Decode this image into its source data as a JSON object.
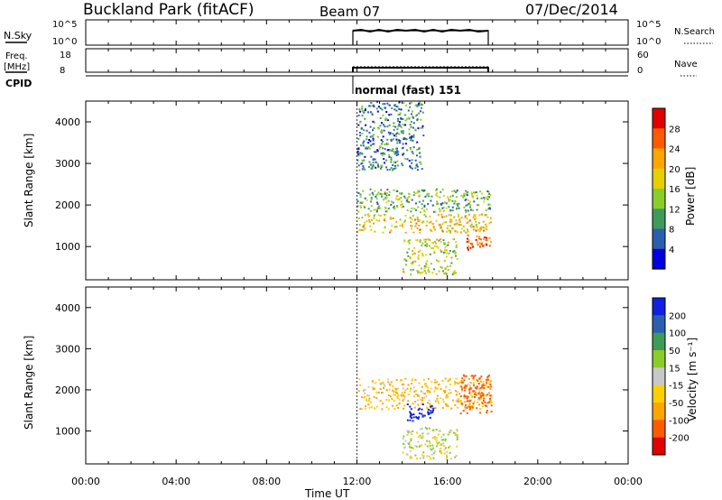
{
  "header": {
    "site": "Buckland Park (fitACF)",
    "beam": "Beam 07",
    "date": "07/Dec/2014"
  },
  "panels": {
    "nsky": {
      "left_label": "N.Sky",
      "right_label": "N.Search",
      "left_ticks": [
        "10^5",
        "10^0"
      ],
      "right_ticks": [
        "10^5",
        "10^0"
      ]
    },
    "freq": {
      "left_label_1": "Freq.",
      "left_label_2": "[MHz]",
      "right_label": "Nave",
      "left_ticks": [
        "18",
        "8"
      ],
      "right_ticks": [
        "60",
        "0"
      ]
    },
    "cpid": {
      "label": "CPID",
      "mode_text": "normal (fast) 151"
    }
  },
  "power_panel": {
    "ylabel": "Slant Range [km]",
    "colorbar_label": "Power [dB]",
    "colorbar_ticks": [
      "28",
      "24",
      "20",
      "16",
      "12",
      "8",
      "4"
    ],
    "colors": [
      "#e00000",
      "#ff5a00",
      "#ffa500",
      "#e6d000",
      "#8ccc2a",
      "#3f9b5a",
      "#2a5fb0",
      "#0000e0"
    ]
  },
  "velocity_panel": {
    "ylabel": "Slant Range [km]",
    "colorbar_label": "Velocity [m s⁻¹]",
    "colorbar_ticks": [
      "200",
      "100",
      "50",
      "15",
      "-15",
      "-50",
      "-100",
      "-200"
    ],
    "colors": [
      "#1020e0",
      "#2a5fb0",
      "#3f9b5a",
      "#8ccc2a",
      "#c8c8c8",
      "#ffd000",
      "#ffa500",
      "#ff5a00",
      "#e00000"
    ]
  },
  "x_axis": {
    "label": "Time UT",
    "ticks": [
      "00:00",
      "04:00",
      "08:00",
      "12:00",
      "16:00",
      "20:00",
      "00:00"
    ]
  },
  "chart_data": [
    {
      "type": "heatmap",
      "quantity": "Power",
      "unit": "dB",
      "xlabel": "Time UT",
      "ylabel": "Slant Range [km]",
      "xlim": [
        0,
        24
      ],
      "ylim": [
        200,
        4500
      ],
      "yticks": [
        1000,
        2000,
        3000,
        4000
      ],
      "data_window_hours": [
        12,
        18
      ],
      "scale_range": [
        0,
        30
      ],
      "echo_regions": [
        {
          "t_start": 12.0,
          "t_end": 18.0,
          "r_min": 1300,
          "r_max": 1800,
          "power_db": 17
        },
        {
          "t_start": 12.0,
          "t_end": 18.0,
          "r_min": 1800,
          "r_max": 2400,
          "power_db": 10
        },
        {
          "t_start": 16.8,
          "t_end": 18.0,
          "r_min": 900,
          "r_max": 1300,
          "power_db": 24
        },
        {
          "t_start": 14.0,
          "t_end": 16.5,
          "r_min": 300,
          "r_max": 1200,
          "power_db": 14
        },
        {
          "t_start": 12.0,
          "t_end": 15.0,
          "r_min": 2800,
          "r_max": 4500,
          "power_db": 6
        }
      ]
    },
    {
      "type": "heatmap",
      "quantity": "Velocity",
      "unit": "m s-1",
      "xlabel": "Time UT",
      "ylabel": "Slant Range [km]",
      "xlim": [
        0,
        24
      ],
      "ylim": [
        200,
        4500
      ],
      "yticks": [
        1000,
        2000,
        3000,
        4000
      ],
      "data_window_hours": [
        12,
        18
      ],
      "scale_range": [
        -250,
        250
      ],
      "echo_regions": [
        {
          "t_start": 12.0,
          "t_end": 18.0,
          "r_min": 1500,
          "r_max": 2300,
          "velocity": -30
        },
        {
          "t_start": 14.2,
          "t_end": 15.5,
          "r_min": 1200,
          "r_max": 1700,
          "velocity": 200
        },
        {
          "t_start": 16.5,
          "t_end": 18.0,
          "r_min": 1400,
          "r_max": 2400,
          "velocity": -120
        },
        {
          "t_start": 14.0,
          "t_end": 16.5,
          "r_min": 300,
          "r_max": 1100,
          "velocity": 0
        }
      ]
    }
  ]
}
